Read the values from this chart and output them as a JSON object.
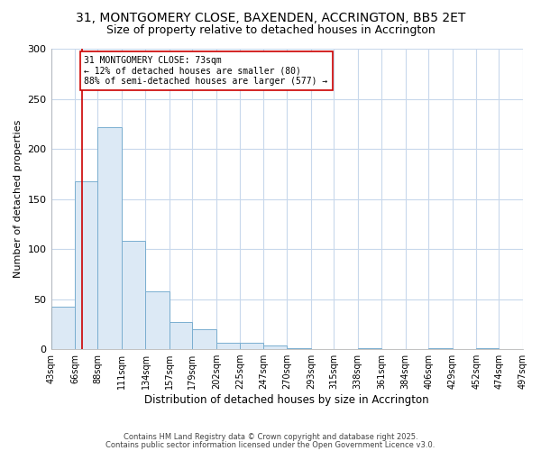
{
  "title1": "31, MONTGOMERY CLOSE, BAXENDEN, ACCRINGTON, BB5 2ET",
  "title2": "Size of property relative to detached houses in Accrington",
  "xlabel": "Distribution of detached houses by size in Accrington",
  "ylabel": "Number of detached properties",
  "bins": [
    43,
    66,
    88,
    111,
    134,
    157,
    179,
    202,
    225,
    247,
    270,
    293,
    315,
    338,
    361,
    384,
    406,
    429,
    452,
    474,
    497
  ],
  "counts": [
    42,
    168,
    222,
    108,
    58,
    27,
    20,
    6,
    6,
    4,
    1,
    0,
    0,
    1,
    0,
    0,
    1,
    0,
    1,
    0,
    2
  ],
  "bar_color": "#dce9f5",
  "bar_edge_color": "#7aaed0",
  "vline_x": 73,
  "vline_color": "#cc0000",
  "annotation_line1": "31 MONTGOMERY CLOSE: 73sqm",
  "annotation_line2": "← 12% of detached houses are smaller (80)",
  "annotation_line3": "88% of semi-detached houses are larger (577) →",
  "annotation_box_color": "white",
  "annotation_box_edge": "#cc0000",
  "background_color": "#ffffff",
  "plot_bg_color": "#ffffff",
  "grid_color": "#c8d8ec",
  "ylim": [
    0,
    300
  ],
  "yticks": [
    0,
    50,
    100,
    150,
    200,
    250,
    300
  ],
  "footnote1": "Contains HM Land Registry data © Crown copyright and database right 2025.",
  "footnote2": "Contains public sector information licensed under the Open Government Licence v3.0."
}
